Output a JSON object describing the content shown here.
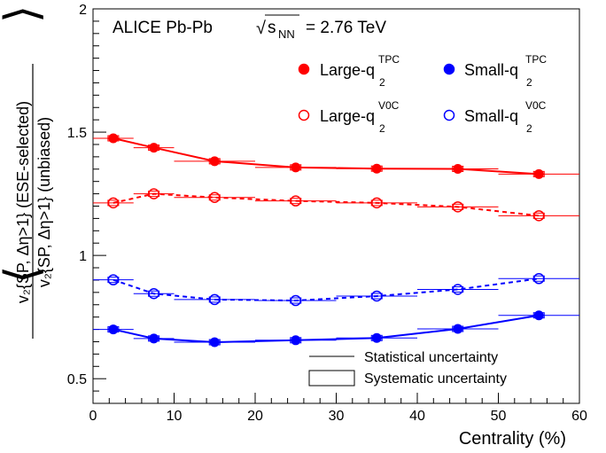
{
  "chart_data": {
    "type": "line",
    "header": {
      "experiment": "ALICE Pb-Pb",
      "sqrt_symbol": "√",
      "s_main": "s",
      "s_sub": "NN",
      "energy": "= 2.76 TeV"
    },
    "xlabel": "Centrality (%)",
    "ylabel": {
      "numerator": "v₂{SP, Δη>1} (ESE-selected)",
      "denominator": "v₂{SP, Δη>1} (unbiased)"
    },
    "xlim": [
      0,
      60
    ],
    "ylim": [
      0.4,
      2.0
    ],
    "x_ticks": [
      0,
      10,
      20,
      30,
      40,
      50,
      60
    ],
    "x_tick_labels": [
      "0",
      "10",
      "20",
      "30",
      "40",
      "50",
      "60"
    ],
    "y_ticks": [
      0.5,
      1.0,
      1.5,
      2.0
    ],
    "y_tick_labels": [
      "0.5",
      "1",
      "1.5",
      "2"
    ],
    "x": [
      2.5,
      7.5,
      15,
      25,
      35,
      45,
      55
    ],
    "x_err": [
      2.5,
      2.5,
      5,
      5,
      5,
      5,
      5
    ],
    "series": [
      {
        "key": "large_tpc",
        "legend_main": "Large-q",
        "legend_sub": "2",
        "legend_sup": "TPC",
        "color": "#ff0000",
        "marker": "filled",
        "line": "solid",
        "values": [
          1.475,
          1.437,
          1.382,
          1.357,
          1.352,
          1.351,
          1.33
        ]
      },
      {
        "key": "small_tpc",
        "legend_main": "Small-q",
        "legend_sub": "2",
        "legend_sup": "TPC",
        "color": "#0000ff",
        "marker": "filled",
        "line": "solid",
        "values": [
          0.7,
          0.663,
          0.648,
          0.656,
          0.665,
          0.702,
          0.757
        ]
      },
      {
        "key": "large_v0c",
        "legend_main": "Large-q",
        "legend_sub": "2",
        "legend_sup": "V0C",
        "color": "#ff0000",
        "marker": "open",
        "line": "dashed",
        "values": [
          1.213,
          1.25,
          1.235,
          1.221,
          1.213,
          1.197,
          1.161
        ]
      },
      {
        "key": "small_v0c",
        "legend_main": "Small-q",
        "legend_sub": "2",
        "legend_sup": "V0C",
        "color": "#0000ff",
        "marker": "open",
        "line": "dashed",
        "values": [
          0.901,
          0.845,
          0.821,
          0.817,
          0.835,
          0.862,
          0.906
        ]
      }
    ],
    "uncertainty_legend": {
      "statistical": "Statistical uncertainty",
      "systematic": "Systematic uncertainty"
    },
    "grid": false,
    "legend_position": "top-right"
  }
}
